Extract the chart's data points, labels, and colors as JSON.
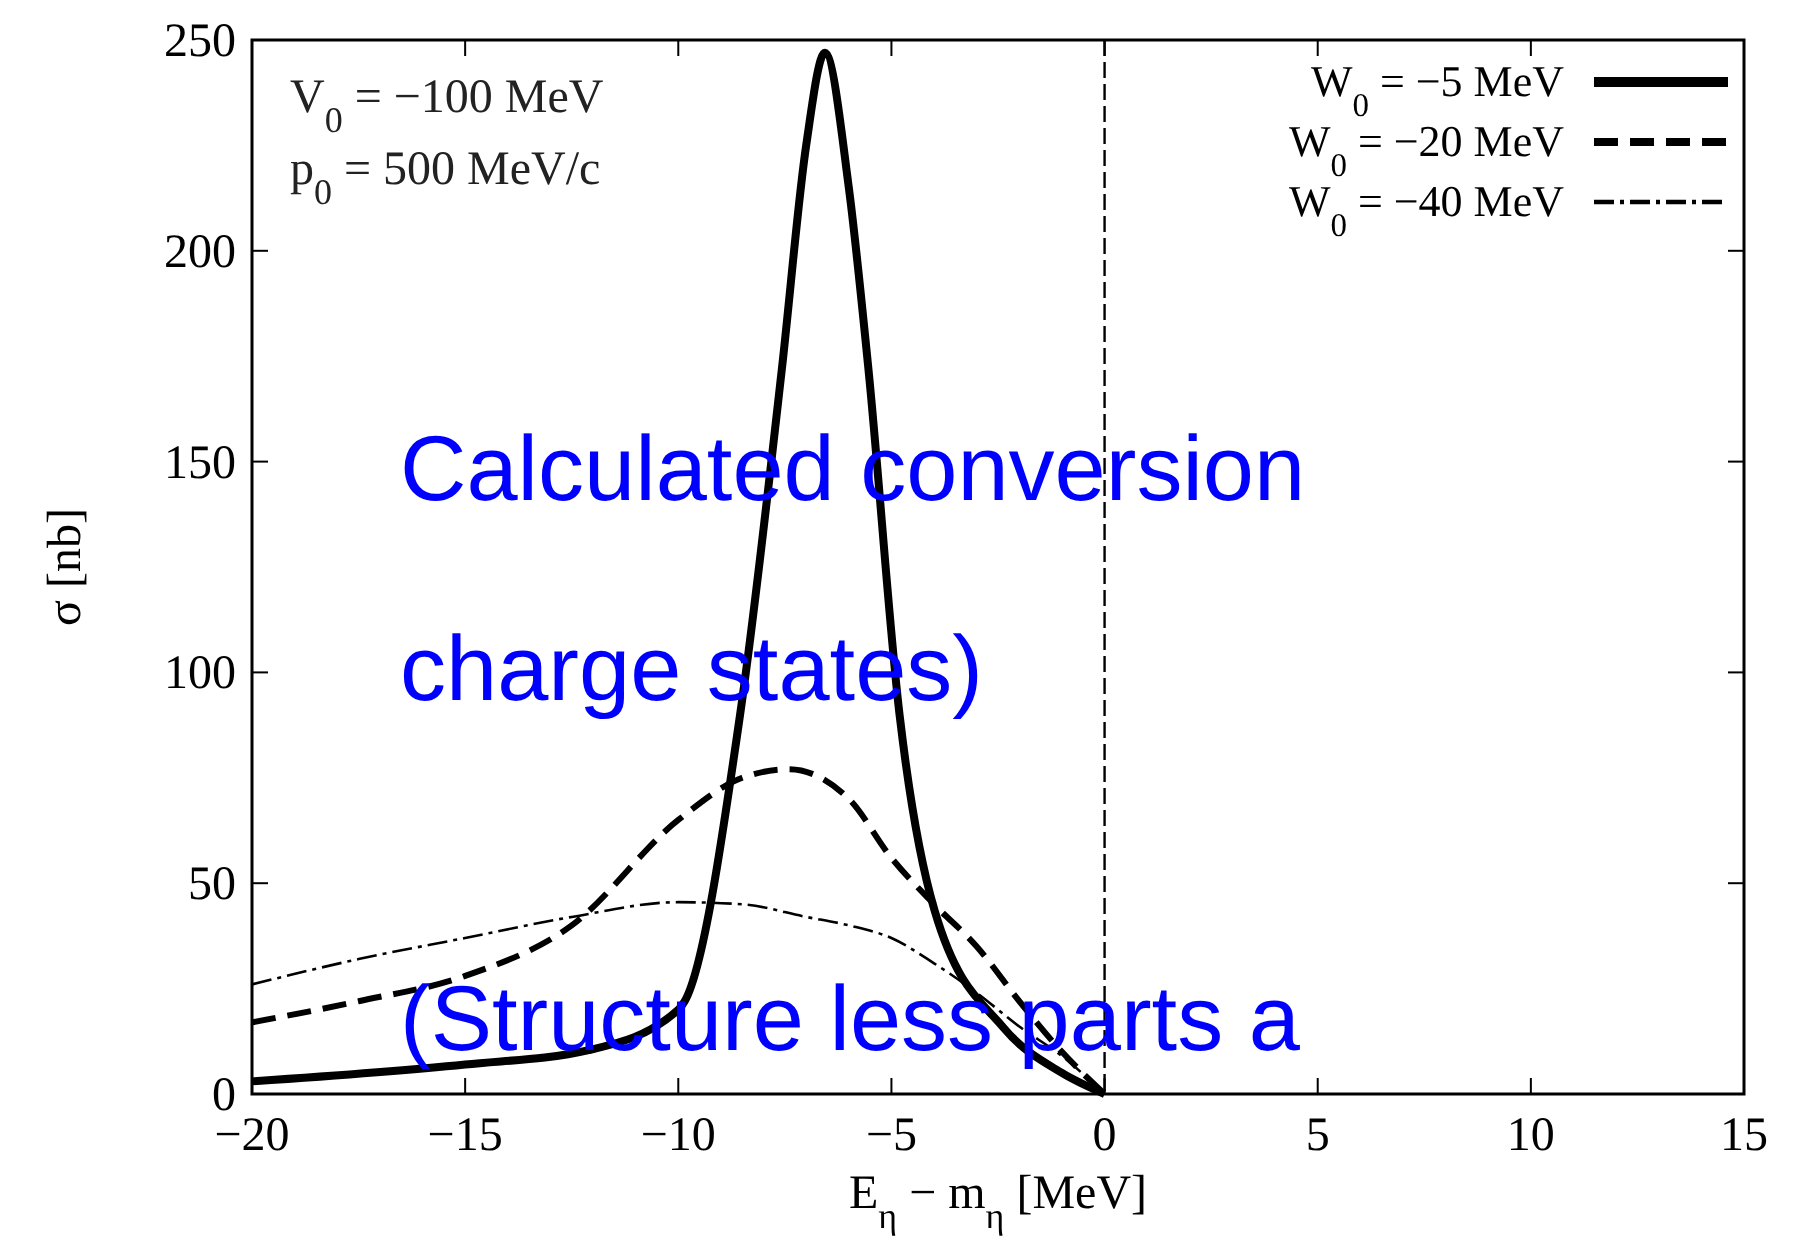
{
  "chart_data": {
    "type": "line",
    "xlabel": "E$_{η}$ − m$_{η}$ [MeV]",
    "ylabel": "σ [nb]",
    "xlim": [
      -20,
      15
    ],
    "ylim": [
      0,
      250
    ],
    "xticks": [
      -20,
      -15,
      -10,
      -5,
      0,
      5,
      10,
      15
    ],
    "yticks": [
      0,
      50,
      100,
      150,
      200,
      250
    ],
    "grid": false,
    "legend": "top right",
    "x": [
      -20,
      -15,
      -12.1,
      -10,
      -9.85,
      -8.55,
      -7.57,
      -7,
      -6.56,
      -6,
      -5.54,
      -4.81,
      -3.99,
      -2.36,
      -1,
      0
    ],
    "series": [
      {
        "name": "W$_{0}$ = −5 MeV",
        "color": "#000000",
        "line_style": "solid",
        "values": [
          3,
          7,
          10.4,
          20,
          22,
          90,
          172,
          225,
          247,
          215,
          172,
          90,
          43.6,
          15.6,
          5,
          0
        ]
      },
      {
        "name": "W$_{0}$ = −20 MeV",
        "color": "#000000",
        "line_style": "dashed",
        "x": [
          -20,
          -17.5,
          -15,
          -12.5,
          -10,
          -8.5,
          -7.41,
          -6,
          -5,
          -4,
          -3,
          -2,
          -1,
          0
        ],
        "values": [
          17,
          22,
          28,
          40,
          65,
          75,
          77,
          70,
          56,
          45,
          35,
          22,
          10,
          0
        ]
      },
      {
        "name": "W$_{0}$ = −40 MeV",
        "color": "#000000",
        "line_style": "dotted",
        "x": [
          -20,
          -17.5,
          -15,
          -12.5,
          -10,
          -8.5,
          -7,
          -6,
          -5,
          -4,
          -3,
          -2,
          -1,
          0
        ],
        "values": [
          26,
          32,
          37,
          42,
          45.5,
          45,
          42,
          40,
          37,
          31,
          24,
          16,
          9,
          0
        ]
      }
    ],
    "ref_lines": [
      {
        "axis": "x",
        "value": 0,
        "line_style": "dashed",
        "color": "#000000"
      }
    ],
    "annotations": [
      "V$_{0}$ = −100 MeV",
      "p$_{0}$ = 500 MeV/c",
      "Calculated conversion",
      "charge states)",
      "(Structure less parts a"
    ]
  }
}
